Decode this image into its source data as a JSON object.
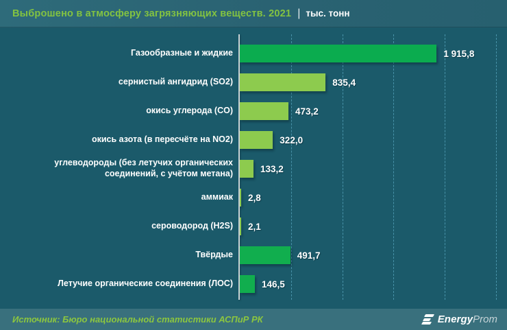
{
  "header": {
    "title": "Выброшено в атмосферу загрязняющих веществ. 2021",
    "separator": "|",
    "units": "тыс. тонн"
  },
  "chart_data": {
    "type": "bar",
    "orientation": "horizontal",
    "title": "Выброшено в атмосферу загрязняющих веществ. 2021",
    "units": "тыс. тонн",
    "categories": [
      "Газообразные и жидкие",
      "сернистый ангидрид (SO2)",
      "окись углерода (CO)",
      "окись азота (в пересчёте на NO2)",
      "углеводороды (без летучих органических соединений, с учётом метана)",
      "аммиак",
      "сероводород (H2S)",
      "Твёрдые",
      "Летучие органические соединения (ЛОС)"
    ],
    "values": [
      1915.8,
      835.4,
      473.2,
      322.0,
      133.2,
      2.8,
      2.1,
      491.7,
      146.5
    ],
    "value_labels": [
      "1 915,8",
      "835,4",
      "473,2",
      "322,0",
      "133,2",
      "2,8",
      "2,1",
      "491,7",
      "146,5"
    ],
    "bar_colors": [
      "#0BAC4F",
      "#8DCB4E",
      "#8DCB4E",
      "#8DCB4E",
      "#8DCB4E",
      "#8DCB4E",
      "#8DCB4E",
      "#11AE4E",
      "#11AE4E"
    ],
    "xlim": [
      0,
      2600
    ],
    "axis_max": 2600,
    "gridlines": [
      500,
      1000,
      1500,
      2000,
      2500
    ],
    "grid_style": "vertical-dashed",
    "legend": null
  },
  "footer": {
    "source": "Источник: Бюро национальной статистики АСПиР РК",
    "logo_bold": "Energy",
    "logo_light": "Prom"
  },
  "colors": {
    "background": "#1B5A6A",
    "header_background": "#2A6272",
    "footer_background": "#39707D",
    "title_green": "#83C341",
    "source_green": "#8CC63F",
    "bar_dark_green": "#0BAC4F",
    "bar_light_green": "#8DCB4E",
    "axis_line": "#C9D3D6",
    "gridline": "#6EC3DC",
    "text": "#FFFFFF"
  }
}
